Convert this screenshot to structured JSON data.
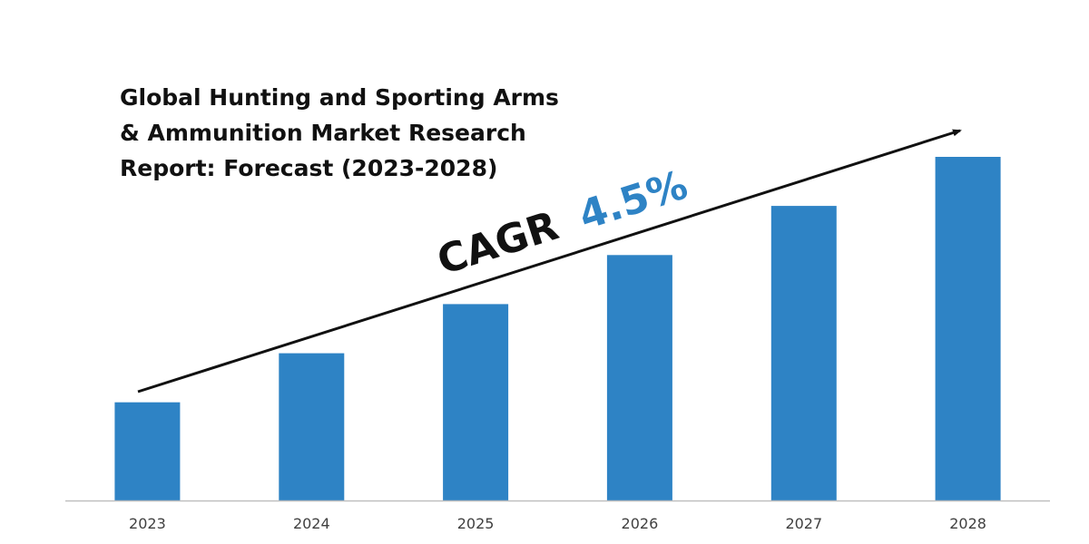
{
  "colors": {
    "bar": "#2E83C5",
    "axis": "#BFBFBF",
    "text": "#111111",
    "cagr_value": "#2E83C5",
    "tick_text": "#404040"
  },
  "chart_data": {
    "type": "bar",
    "title": "Global Hunting and Sporting Arms & Ammunition Market Research Report: Forecast (2023-2028)",
    "title_lines": [
      "Global Hunting and Sporting Arms",
      "& Ammunition Market Research",
      "Report: Forecast (2023-2028)"
    ],
    "categories": [
      "2023",
      "2024",
      "2025",
      "2026",
      "2027",
      "2028"
    ],
    "values": [
      1,
      1.5,
      2,
      2.5,
      3,
      3.5
    ],
    "ylim": [
      0,
      3.5
    ],
    "xlabel": "",
    "ylabel": "",
    "grid": false,
    "annotation": {
      "label": "CAGR",
      "value": "4.5%"
    }
  }
}
